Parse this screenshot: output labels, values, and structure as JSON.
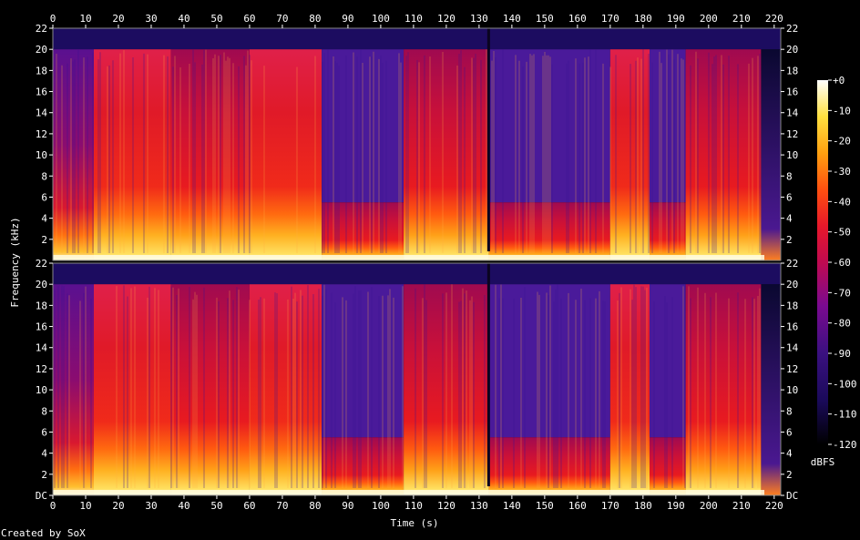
{
  "chart_data": {
    "type": "heatmap",
    "title": "",
    "xlabel": "Time (s)",
    "ylabel": "Frequency (kHz)",
    "xlim": [
      0,
      222
    ],
    "ylim_khz": [
      0,
      22
    ],
    "x_ticks": [
      "0",
      "10",
      "20",
      "30",
      "40",
      "50",
      "60",
      "70",
      "80",
      "90",
      "100",
      "110",
      "120",
      "130",
      "140",
      "150",
      "160",
      "170",
      "180",
      "190",
      "200",
      "210",
      "220"
    ],
    "y_ticks_top": [
      "2",
      "4",
      "6",
      "8",
      "10",
      "12",
      "14",
      "16",
      "18",
      "20",
      "22"
    ],
    "y_ticks_bottom": [
      "DC",
      "2",
      "4",
      "6",
      "8",
      "10",
      "12",
      "14",
      "16",
      "18",
      "20",
      "22"
    ],
    "channels": 2,
    "colorbar": {
      "label": "dBFS",
      "ticks": [
        "+0",
        "-10",
        "-20",
        "-30",
        "-40",
        "-50",
        "-60",
        "-70",
        "-80",
        "-90",
        "-100",
        "-110",
        "-120"
      ],
      "range": [
        -120,
        0
      ]
    },
    "segments": [
      {
        "start": 0,
        "end": 12.5,
        "cutoff_khz": 20,
        "level": "low"
      },
      {
        "start": 12.5,
        "end": 36,
        "cutoff_khz": 20,
        "level": "high"
      },
      {
        "start": 36,
        "end": 60,
        "cutoff_khz": 20,
        "level": "mid"
      },
      {
        "start": 60,
        "end": 82,
        "cutoff_khz": 20,
        "level": "high"
      },
      {
        "start": 82,
        "end": 107,
        "cutoff_khz": 5.5,
        "level": "mid"
      },
      {
        "start": 107,
        "end": 133,
        "cutoff_khz": 20,
        "level": "mid"
      },
      {
        "start": 133,
        "end": 170,
        "cutoff_khz": 5.5,
        "level": "mid"
      },
      {
        "start": 170,
        "end": 182,
        "cutoff_khz": 20,
        "level": "high"
      },
      {
        "start": 182,
        "end": 193,
        "cutoff_khz": 5.5,
        "level": "mid"
      },
      {
        "start": 193,
        "end": 216,
        "cutoff_khz": 20,
        "level": "mid"
      },
      {
        "start": 216,
        "end": 222,
        "cutoff_khz": 0,
        "level": "fade"
      }
    ]
  },
  "footer": {
    "created_by": "Created by SoX"
  }
}
